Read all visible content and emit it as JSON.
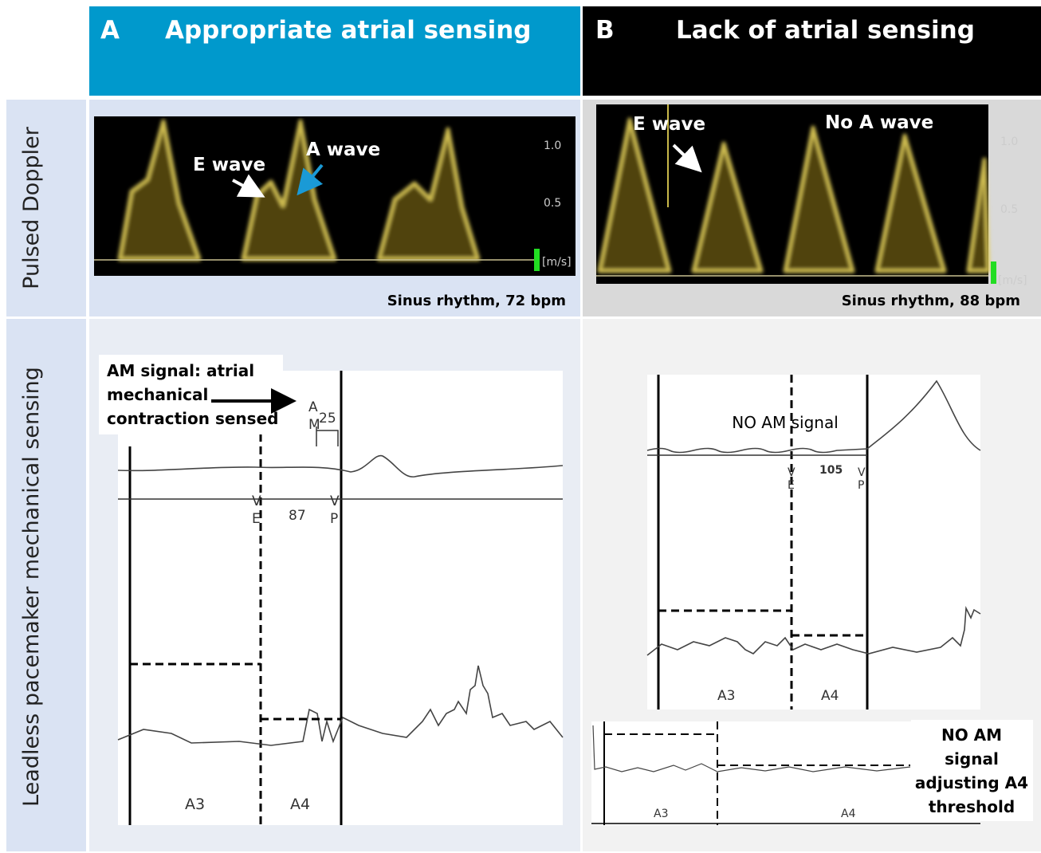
{
  "header": {
    "panel_a": {
      "letter": "A",
      "title": "Appropriate atrial sensing"
    },
    "panel_b": {
      "letter": "B",
      "title": "Lack of atrial sensing"
    }
  },
  "row_labels": [
    "Pulsed Doppler",
    "Leadless pacemaker mechanical sensing"
  ],
  "doppler_a": {
    "e_wave": "E wave",
    "a_wave": "A wave",
    "scale": [
      "1.0",
      "0.5",
      "[m/s]"
    ],
    "caption": "Sinus rhythm, 72 bpm"
  },
  "doppler_b": {
    "e_wave": "E wave",
    "no_a_wave": "No A wave",
    "scale": [
      "1.0",
      "0.5",
      "[m/s]"
    ],
    "caption": "Sinus rhythm, 88 bpm"
  },
  "trace_a": {
    "callout": [
      "AM signal: atrial",
      "mechanical",
      "contraction sensed"
    ],
    "markers": [
      "A",
      "M",
      "25",
      "V",
      "E",
      "87",
      "V",
      "P"
    ],
    "windows": [
      "A3",
      "A4"
    ]
  },
  "trace_b": {
    "note": "NO AM signal",
    "markers": [
      "V",
      "E",
      "105",
      "V",
      "P"
    ],
    "windows": [
      "A3",
      "A4"
    ],
    "inset_windows": [
      "A3",
      "A4"
    ],
    "callout": [
      "NO AM",
      "signal",
      "adjusting A4",
      "threshold"
    ]
  }
}
